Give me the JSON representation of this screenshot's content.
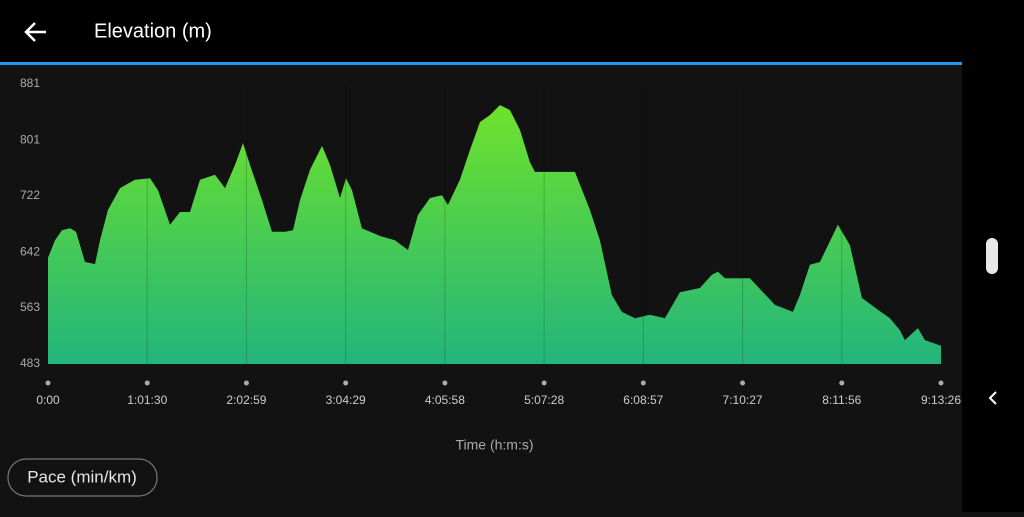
{
  "header": {
    "title": "Elevation (m)"
  },
  "chart_data": {
    "type": "area",
    "xlabel": "Time (h:m:s)",
    "x": [
      0,
      260,
      521,
      818,
      1041,
      1376,
      1747,
      1933,
      2231,
      2677,
      3235,
      3792,
      4090,
      4536,
      4908,
      5280,
      5651,
      6209,
      6581,
      6953,
      7250,
      7510,
      7957,
      8328,
      8812,
      9109,
      9369,
      9741,
      10187,
      10485,
      10857,
      11080,
      11303,
      11674,
      12344,
      12901,
      13385,
      13757,
      14203,
      14649,
      14872,
      15318,
      15690,
      16062,
      16434,
      16805,
      17177,
      17549,
      17921,
      18107,
      19594,
      20152,
      20523,
      20970,
      21341,
      21825,
      22382,
      22940,
      23498,
      24241,
      24688,
      24911,
      25171,
      26100,
      27030,
      27699,
      27959,
      28331,
      28703,
      29372,
      29818,
      30264,
      30859,
      31305,
      31677,
      31863,
      32346,
      32606,
      33206
    ],
    "values": [
      634,
      659,
      673,
      676,
      671,
      628,
      625,
      659,
      702,
      733,
      745,
      747,
      730,
      681,
      699,
      699,
      745,
      752,
      733,
      766,
      797,
      766,
      716,
      671,
      671,
      673,
      716,
      759,
      793,
      766,
      719,
      747,
      730,
      676,
      665,
      659,
      645,
      695,
      719,
      723,
      709,
      745,
      787,
      827,
      837,
      851,
      844,
      816,
      770,
      756,
      756,
      702,
      659,
      581,
      557,
      548,
      553,
      548,
      585,
      591,
      610,
      614,
      605,
      605,
      567,
      557,
      581,
      624,
      628,
      681,
      652,
      577,
      560,
      548,
      531,
      517,
      534,
      517,
      509
    ],
    "color_top": "#6fe22a",
    "color_bottom": "#22b57c",
    "xlim": [
      0,
      33206
    ],
    "xticks": [
      {
        "value": 0,
        "label": "0:00"
      },
      {
        "value": 3690,
        "label": "1:01:30"
      },
      {
        "value": 7379,
        "label": "2:02:59"
      },
      {
        "value": 11069,
        "label": "3:04:29"
      },
      {
        "value": 14758,
        "label": "4:05:58"
      },
      {
        "value": 18448,
        "label": "5:07:28"
      },
      {
        "value": 22137,
        "label": "6:08:57"
      },
      {
        "value": 25827,
        "label": "7:10:27"
      },
      {
        "value": 29516,
        "label": "8:11:56"
      },
      {
        "value": 33206,
        "label": "9:13:26"
      }
    ],
    "ylim": [
      483,
      881
    ],
    "yticks": [
      483,
      563,
      642,
      722,
      801,
      881
    ]
  },
  "button": {
    "label": "Pace (min/km)"
  }
}
